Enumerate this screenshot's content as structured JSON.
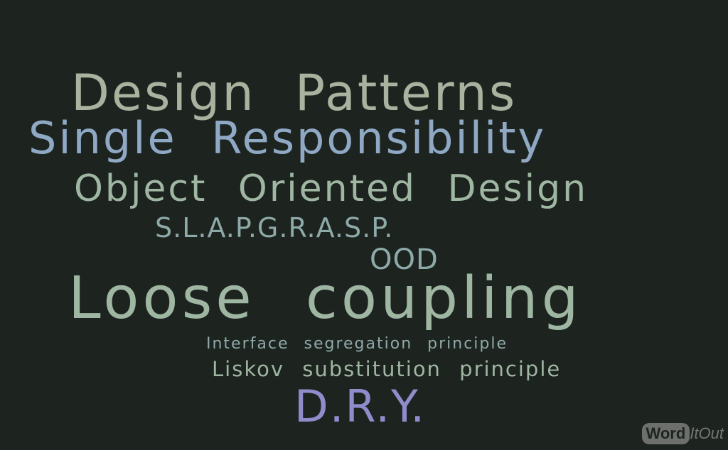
{
  "words": {
    "design_patterns": "Design Patterns",
    "single_responsibility": "Single Responsibility",
    "object_oriented_design": "Object Oriented Design",
    "slap_grasp": "S.L.A.P.G.R.A.S.P.",
    "ood": "OOD",
    "loose_coupling": "Loose coupling",
    "interface_segregation": "Interface segregation principle",
    "liskov": "Liskov substitution principle",
    "dry": "D.R.Y."
  },
  "logo": {
    "word": "Word",
    "rest": "ItOut"
  },
  "colors": {
    "background": "#1d231f",
    "gray_green": "#a8b29f",
    "blue": "#8fa8c4",
    "sage": "#9fb6a2",
    "teal": "#8eaaa8",
    "purple": "#8f8ccc"
  }
}
